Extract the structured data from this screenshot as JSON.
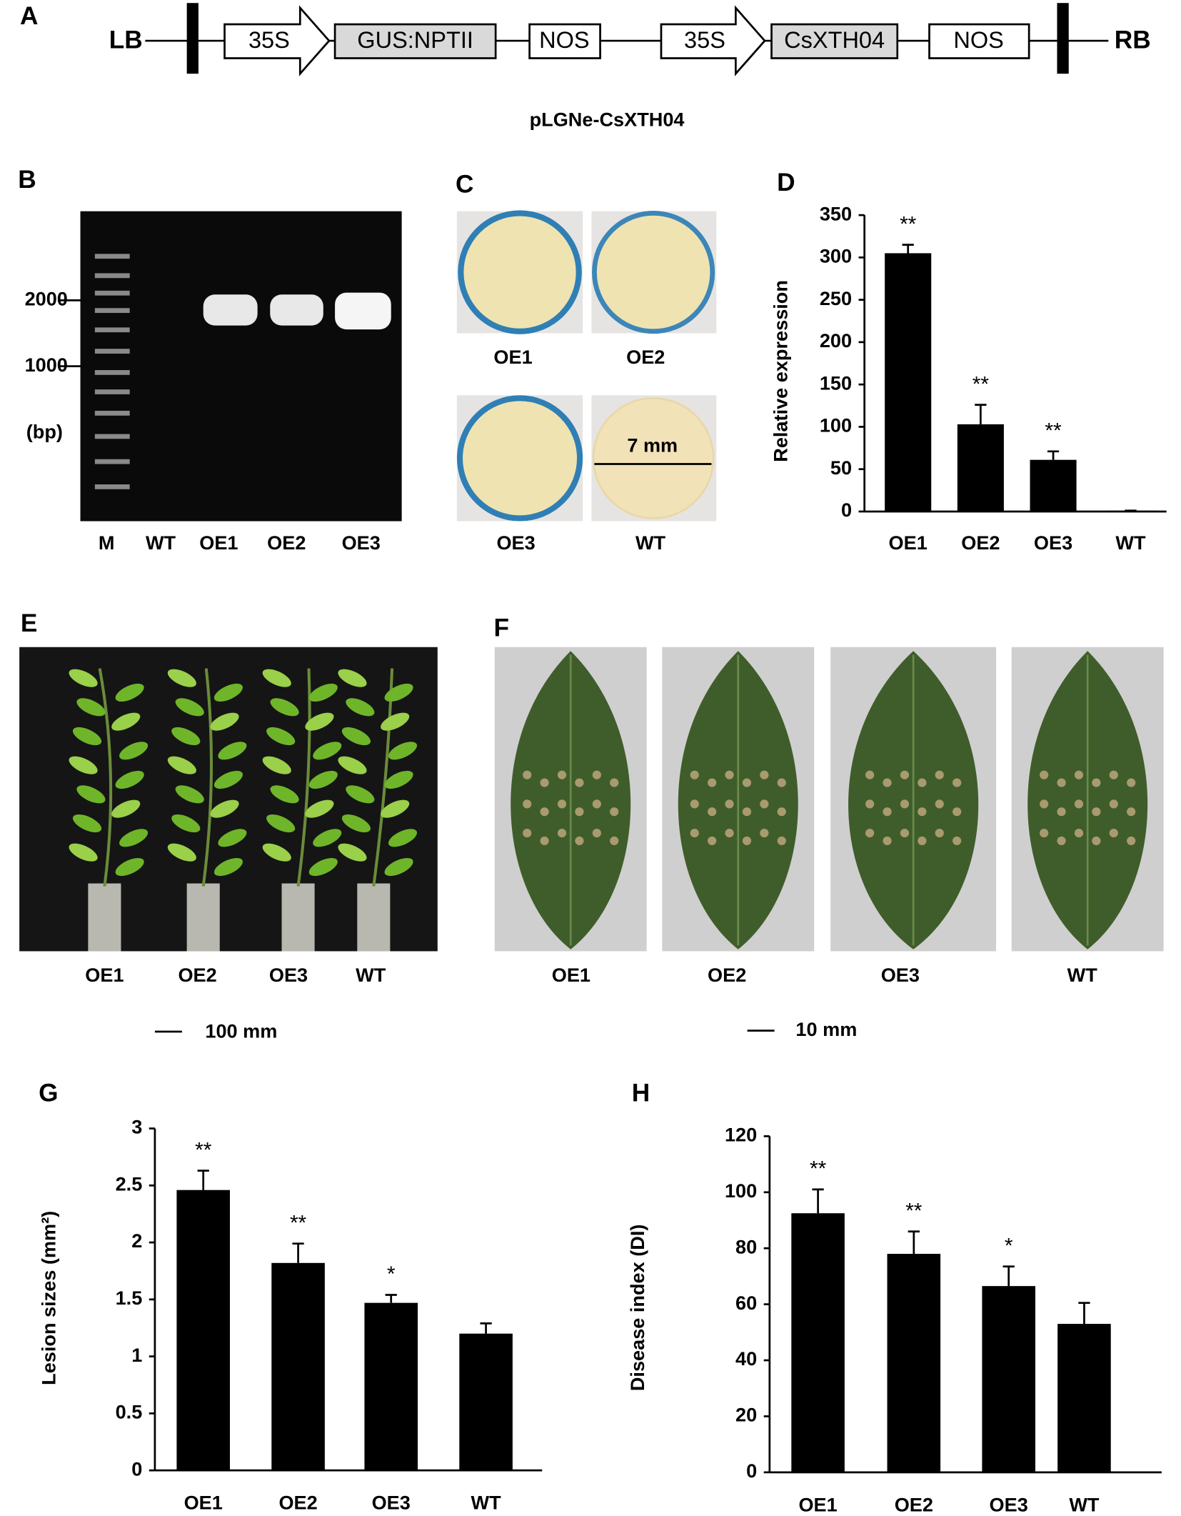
{
  "panel_a": {
    "panel": "A",
    "left": "LB",
    "right": "RB",
    "elements": [
      "35S",
      "GUS:NPTII",
      "NOS",
      "35S",
      "CsXTH04",
      "NOS"
    ],
    "caption": "pLGNe-CsXTH04"
  },
  "panel_b": {
    "panel": "B",
    "markers": [
      "2000",
      "1000"
    ],
    "unit": "(bp)",
    "lanes": [
      "M",
      "WT",
      "OE1",
      "OE2",
      "OE3"
    ]
  },
  "panel_c": {
    "panel": "C",
    "samples": [
      "OE1",
      "OE2",
      "OE3",
      "WT"
    ],
    "scale": "7 mm"
  },
  "panel_e": {
    "panel": "E",
    "samples": [
      "OE1",
      "OE2",
      "OE3",
      "WT"
    ],
    "scale": "100 mm"
  },
  "panel_f": {
    "panel": "F",
    "samples": [
      "OE1",
      "OE2",
      "OE3",
      "WT"
    ],
    "scale": "10 mm"
  },
  "chart_data": [
    {
      "type": "bar",
      "panel": "D",
      "y_label": "Relative expression",
      "categories": [
        "OE1",
        "OE2",
        "OE3",
        "WT"
      ],
      "values": [
        305,
        103,
        61,
        1
      ],
      "errors": [
        10,
        23,
        10,
        0
      ],
      "significance": [
        "**",
        "**",
        "**",
        null
      ],
      "color": "#000000",
      "ylim": [
        0,
        350
      ],
      "yticks": [
        0,
        50,
        100,
        150,
        200,
        250,
        300,
        350
      ]
    },
    {
      "type": "bar",
      "panel": "G",
      "y_label": "Lesion sizes (mm²)",
      "categories": [
        "OE1",
        "OE2",
        "OE3",
        "WT"
      ],
      "values": [
        2.46,
        1.82,
        1.47,
        1.2
      ],
      "errors": [
        0.17,
        0.17,
        0.07,
        0.09
      ],
      "significance": [
        "**",
        "**",
        "*",
        null
      ],
      "color": "#000000",
      "ylim": [
        0,
        3
      ],
      "yticks": [
        0,
        0.5,
        1,
        1.5,
        2,
        2.5,
        3
      ]
    },
    {
      "type": "bar",
      "panel": "H",
      "y_label": "Disease index (DI)",
      "categories": [
        "OE1",
        "OE2",
        "OE3",
        "WT"
      ],
      "values": [
        92.5,
        78,
        66.5,
        53
      ],
      "errors": [
        8.5,
        8,
        7,
        7.5
      ],
      "significance": [
        "**",
        "**",
        "*",
        null
      ],
      "color": "#000000",
      "ylim": [
        0,
        120
      ],
      "yticks": [
        0,
        20,
        40,
        60,
        80,
        100,
        120
      ]
    }
  ]
}
